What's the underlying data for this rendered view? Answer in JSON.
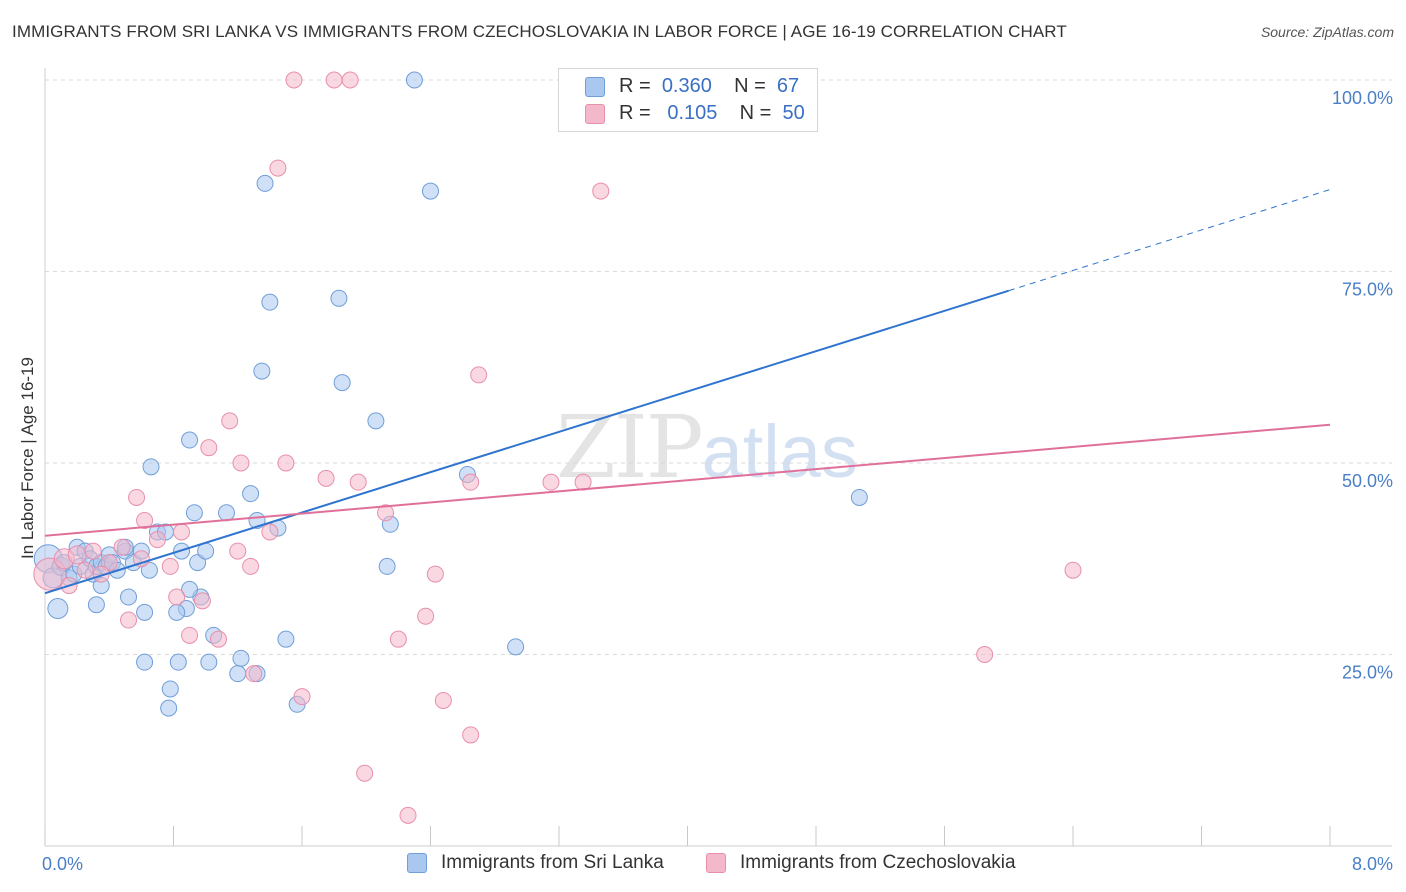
{
  "title": "IMMIGRANTS FROM SRI LANKA VS IMMIGRANTS FROM CZECHOSLOVAKIA IN LABOR FORCE | AGE 16-19 CORRELATION CHART",
  "source": "Source: ZipAtlas.com",
  "watermark": {
    "zip": "ZIP",
    "atlas": "atlas"
  },
  "legend": {
    "r_label": "R =",
    "n_label": "N =",
    "rows": [
      {
        "r": "0.360",
        "n": "67",
        "color": "#a9c7ef"
      },
      {
        "r": "0.105",
        "n": "50",
        "color": "#f4b8cb"
      }
    ]
  },
  "chart_data": {
    "type": "scatter",
    "title": "IMMIGRANTS FROM SRI LANKA VS IMMIGRANTS FROM CZECHOSLOVAKIA IN LABOR FORCE | AGE 16-19 CORRELATION CHART",
    "xlabel": "",
    "ylabel": "In Labor Force | Age 16-19",
    "xlim": [
      0,
      8
    ],
    "ylim": [
      0,
      102
    ],
    "x_tick_labels": {
      "left": "0.0%",
      "right": "8.0%"
    },
    "y_ticks": [
      25,
      50,
      75,
      100
    ],
    "y_tick_labels": [
      "25.0%",
      "50.0%",
      "75.0%",
      "100.0%"
    ],
    "grid": true,
    "series": [
      {
        "name": "Immigrants from Sri Lanka",
        "color": "#a9c7ef",
        "stroke": "#6f9fd8",
        "line_color": "#2f74cf",
        "r": 0.36,
        "n": 67,
        "trend": {
          "x0": 0.0,
          "y0": 33.0,
          "x1": 6.0,
          "y1": 72.5,
          "x_dash_end": 8.0,
          "y_dash_end": 85.7
        },
        "points": [
          [
            0.02,
            37.5,
            14
          ],
          [
            0.08,
            31,
            10
          ],
          [
            0.05,
            35,
            10
          ],
          [
            0.1,
            36.5,
            9
          ],
          [
            0.12,
            37,
            8
          ],
          [
            0.15,
            35,
            8
          ],
          [
            0.18,
            35.5,
            8
          ],
          [
            0.2,
            39,
            8
          ],
          [
            0.22,
            36.5,
            8
          ],
          [
            0.25,
            38.5,
            8
          ],
          [
            0.28,
            37.5,
            8
          ],
          [
            0.3,
            35.5,
            8
          ],
          [
            0.32,
            36.5,
            8
          ],
          [
            0.35,
            37,
            8
          ],
          [
            0.38,
            36.5,
            8
          ],
          [
            0.4,
            38,
            8
          ],
          [
            0.42,
            37,
            8
          ],
          [
            0.45,
            36,
            8
          ],
          [
            0.5,
            38.5,
            8
          ],
          [
            0.55,
            37,
            8
          ],
          [
            0.6,
            38.5,
            8
          ],
          [
            0.65,
            36,
            8
          ],
          [
            0.7,
            41,
            8
          ],
          [
            0.75,
            41,
            8
          ],
          [
            0.85,
            38.5,
            8
          ],
          [
            0.95,
            37,
            8
          ],
          [
            1.0,
            38.5,
            8
          ],
          [
            0.32,
            31.5,
            8
          ],
          [
            0.35,
            34,
            8
          ],
          [
            0.52,
            32.5,
            8
          ],
          [
            0.62,
            30.5,
            8
          ],
          [
            0.88,
            31,
            8
          ],
          [
            0.97,
            32.5,
            8
          ],
          [
            0.9,
            33.5,
            8
          ],
          [
            0.82,
            30.5,
            8
          ],
          [
            1.05,
            27.5,
            8
          ],
          [
            1.5,
            27,
            8
          ],
          [
            2.93,
            26,
            8
          ],
          [
            0.62,
            24,
            8
          ],
          [
            0.83,
            24,
            8
          ],
          [
            1.02,
            24,
            8
          ],
          [
            1.22,
            24.5,
            8
          ],
          [
            1.2,
            22.5,
            8
          ],
          [
            1.32,
            22.5,
            8
          ],
          [
            0.78,
            20.5,
            8
          ],
          [
            0.77,
            18,
            8
          ],
          [
            1.57,
            18.5,
            8
          ],
          [
            0.66,
            49.5,
            8
          ],
          [
            0.9,
            53,
            8
          ],
          [
            0.93,
            43.5,
            8
          ],
          [
            1.13,
            43.5,
            8
          ],
          [
            1.28,
            46,
            8
          ],
          [
            1.32,
            42.5,
            8
          ],
          [
            1.45,
            41.5,
            8
          ],
          [
            2.15,
            42,
            8
          ],
          [
            2.13,
            36.5,
            8
          ],
          [
            2.63,
            48.5,
            8
          ],
          [
            1.85,
            60.5,
            8
          ],
          [
            2.06,
            55.5,
            8
          ],
          [
            1.35,
            62,
            8
          ],
          [
            1.4,
            71,
            8
          ],
          [
            1.83,
            71.5,
            8
          ],
          [
            1.37,
            86.5,
            8
          ],
          [
            2.4,
            85.5,
            8
          ],
          [
            2.3,
            100,
            8
          ],
          [
            5.07,
            45.5,
            8
          ],
          [
            0.5,
            39,
            8
          ]
        ]
      },
      {
        "name": "Immigrants from Czechoslovakia",
        "color": "#f4b8cb",
        "stroke": "#e88fae",
        "line_color": "#e0709a",
        "r": 0.105,
        "n": 50,
        "trend": {
          "x0": 0.0,
          "y0": 40.5,
          "x1": 8.0,
          "y1": 55.0
        },
        "points": [
          [
            0.03,
            35.5,
            16
          ],
          [
            0.12,
            37.5,
            10
          ],
          [
            0.2,
            38,
            9
          ],
          [
            0.25,
            36,
            8
          ],
          [
            0.3,
            38.5,
            8
          ],
          [
            0.4,
            37,
            8
          ],
          [
            0.48,
            39,
            8
          ],
          [
            0.6,
            37.5,
            8
          ],
          [
            0.62,
            42.5,
            8
          ],
          [
            0.7,
            40,
            8
          ],
          [
            0.78,
            36.5,
            8
          ],
          [
            0.85,
            41,
            8
          ],
          [
            0.57,
            45.5,
            8
          ],
          [
            0.52,
            29.5,
            8
          ],
          [
            0.82,
            32.5,
            8
          ],
          [
            0.98,
            32,
            8
          ],
          [
            0.9,
            27.5,
            8
          ],
          [
            1.08,
            27,
            8
          ],
          [
            1.2,
            38.5,
            8
          ],
          [
            1.28,
            36.5,
            8
          ],
          [
            1.4,
            41,
            8
          ],
          [
            1.3,
            22.5,
            8
          ],
          [
            1.6,
            19.5,
            8
          ],
          [
            1.02,
            52,
            8
          ],
          [
            1.15,
            55.5,
            8
          ],
          [
            1.22,
            50,
            8
          ],
          [
            1.5,
            50,
            8
          ],
          [
            1.75,
            48,
            8
          ],
          [
            1.95,
            47.5,
            8
          ],
          [
            2.12,
            43.5,
            8
          ],
          [
            2.43,
            35.5,
            8
          ],
          [
            2.65,
            47.5,
            8
          ],
          [
            2.7,
            61.5,
            8
          ],
          [
            3.15,
            47.5,
            8
          ],
          [
            3.35,
            47.5,
            8
          ],
          [
            2.2,
            27,
            8
          ],
          [
            2.37,
            30,
            8
          ],
          [
            2.48,
            19,
            8
          ],
          [
            2.65,
            14.5,
            8
          ],
          [
            1.99,
            9.5,
            8
          ],
          [
            2.26,
            4,
            8
          ],
          [
            1.45,
            88.5,
            8
          ],
          [
            1.55,
            100,
            8
          ],
          [
            1.8,
            100,
            8
          ],
          [
            1.9,
            100,
            8
          ],
          [
            3.46,
            85.5,
            8
          ],
          [
            5.85,
            25,
            8
          ],
          [
            6.4,
            36,
            8
          ],
          [
            0.15,
            34,
            8
          ],
          [
            0.35,
            35.5,
            8
          ]
        ]
      }
    ]
  }
}
